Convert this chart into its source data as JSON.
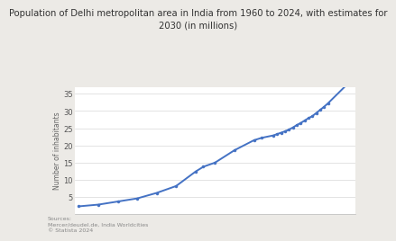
{
  "title": "Population of Delhi metropolitan area in India from 1960 to 2024, with estimates for\n2030 (in millions)",
  "ylabel": "Number of inhabitants",
  "background_color": "#eceae6",
  "plot_bg_color": "#ffffff",
  "line_color": "#4472c4",
  "marker_color": "#4472c4",
  "years": [
    1960,
    1965,
    1970,
    1975,
    1980,
    1985,
    1990,
    1992,
    1995,
    2000,
    2005,
    2007,
    2010,
    2011,
    2012,
    2013,
    2014,
    2015,
    2016,
    2017,
    2018,
    2019,
    2020,
    2021,
    2022,
    2023,
    2024,
    2030
  ],
  "population": [
    2.3,
    2.8,
    3.7,
    4.6,
    6.2,
    8.2,
    12.4,
    13.8,
    15.0,
    18.6,
    21.5,
    22.2,
    22.9,
    23.3,
    23.7,
    24.1,
    24.6,
    25.2,
    25.9,
    26.5,
    27.2,
    27.9,
    28.5,
    29.4,
    30.3,
    31.2,
    32.2,
    38.9
  ],
  "ylim": [
    0,
    37
  ],
  "yticks": [
    5,
    10,
    15,
    20,
    25,
    30,
    35
  ],
  "xlim": [
    1959,
    2031
  ],
  "source_text": "Sources:\nMercer/deudel.de, India Worldcities\n© Statista 2024",
  "title_fontsize": 7.2,
  "ylabel_fontsize": 5.5,
  "tick_fontsize": 6.0,
  "source_fontsize": 4.5
}
